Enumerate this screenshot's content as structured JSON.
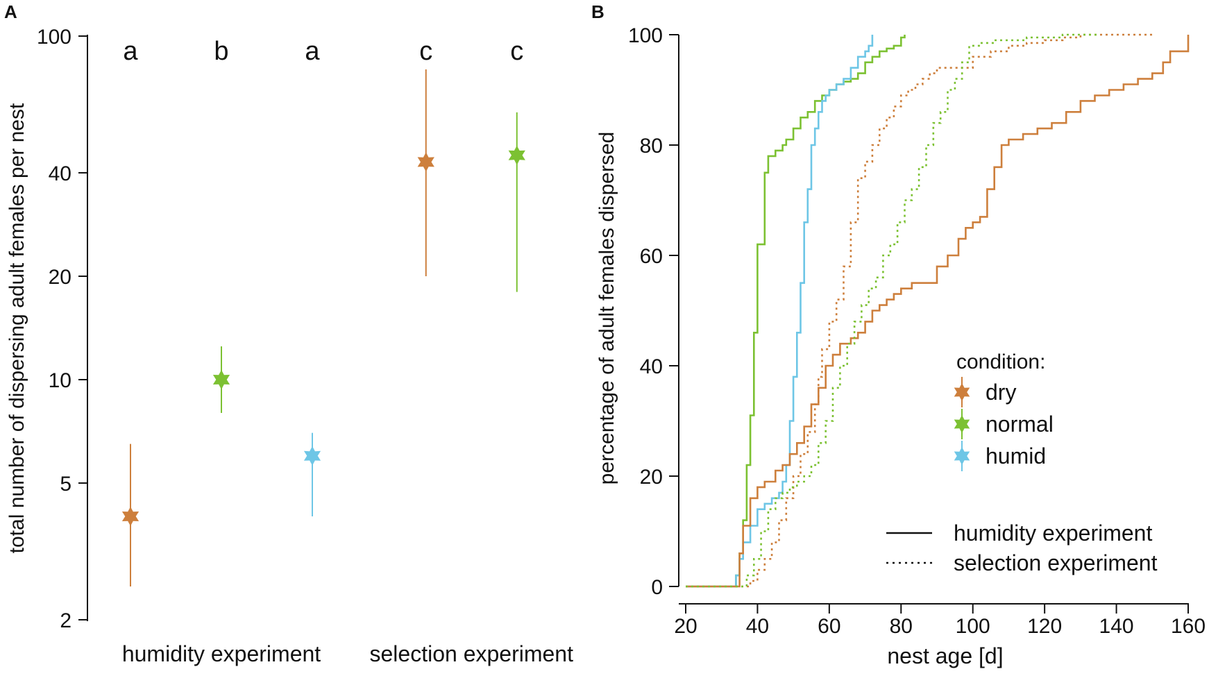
{
  "colors": {
    "dry": "#CD7F3C",
    "normal": "#7CC132",
    "humid": "#6EC6E6",
    "text": "#111111"
  },
  "chart_data": [
    {
      "panel": "A",
      "type": "scatter",
      "scale": "log",
      "ylabel": "total number of dispersing adult females per nest",
      "yticks": [
        2,
        5,
        10,
        20,
        40,
        100
      ],
      "ylim": [
        2,
        100
      ],
      "groups": [
        {
          "name": "humidity experiment",
          "positions": [
            1,
            2,
            3
          ]
        },
        {
          "name": "selection experiment",
          "positions": [
            4.25,
            5.25
          ]
        }
      ],
      "points": [
        {
          "position": 1,
          "condition": "dry",
          "value": 4.0,
          "lower": 2.5,
          "upper": 6.5,
          "letter": "a"
        },
        {
          "position": 2,
          "condition": "normal",
          "value": 10.0,
          "lower": 8.0,
          "upper": 12.5,
          "letter": "b"
        },
        {
          "position": 3,
          "condition": "humid",
          "value": 6.0,
          "lower": 4.0,
          "upper": 7.0,
          "letter": "a"
        },
        {
          "position": 4.25,
          "condition": "dry",
          "value": 43.0,
          "lower": 20.0,
          "upper": 80.0,
          "letter": "c"
        },
        {
          "position": 5.25,
          "condition": "normal",
          "value": 45.0,
          "lower": 18.0,
          "upper": 60.0,
          "letter": "c"
        }
      ]
    },
    {
      "panel": "B",
      "type": "line",
      "step": true,
      "xlabel": "nest age [d]",
      "ylabel": "percentage of adult females dispersed",
      "xlim": [
        20,
        160
      ],
      "ylim": [
        0,
        100
      ],
      "xticks": [
        20,
        40,
        60,
        80,
        100,
        120,
        140,
        160
      ],
      "yticks": [
        0,
        20,
        40,
        60,
        80,
        100
      ],
      "legend_condition_title": "condition:",
      "legend_condition": [
        {
          "name": "dry",
          "condition": "dry"
        },
        {
          "name": "normal",
          "condition": "normal"
        },
        {
          "name": "humid",
          "condition": "humid"
        }
      ],
      "legend_experiment": [
        {
          "name": "humidity experiment",
          "style": "solid"
        },
        {
          "name": "selection experiment",
          "style": "dotted"
        }
      ],
      "series": [
        {
          "name": "humidity normal",
          "condition": "normal",
          "style": "solid",
          "x": [
            20,
            34,
            35,
            36,
            37,
            38,
            39,
            40,
            42,
            43,
            45,
            47,
            48,
            50,
            52,
            54,
            56,
            58,
            60,
            62,
            64,
            66,
            68,
            70,
            72,
            74,
            76,
            78,
            80,
            81
          ],
          "y": [
            0,
            2,
            6,
            12,
            22,
            31,
            46,
            62,
            75,
            78,
            79,
            80,
            81,
            83,
            85,
            86,
            88,
            89,
            90,
            91,
            91.5,
            92,
            93,
            95,
            96,
            97,
            97.5,
            98,
            99.5,
            100
          ]
        },
        {
          "name": "humidity humid",
          "condition": "humid",
          "style": "solid",
          "x": [
            20,
            34,
            35,
            36,
            38,
            40,
            42,
            44,
            46,
            47,
            48,
            49,
            50,
            51,
            52,
            53,
            54,
            55,
            56,
            57,
            58,
            59,
            60,
            62,
            64,
            66,
            68,
            70,
            71,
            72
          ],
          "y": [
            0,
            2,
            5,
            8,
            11,
            14,
            15,
            16,
            17,
            19,
            22,
            30,
            38,
            46,
            55,
            66,
            72,
            80,
            83,
            86,
            88,
            89,
            90,
            91,
            92,
            94,
            96,
            97,
            98,
            100
          ]
        },
        {
          "name": "humidity dry",
          "condition": "dry",
          "style": "solid",
          "x": [
            20,
            35,
            36,
            38,
            40,
            42,
            45,
            47,
            49,
            51,
            53,
            55,
            57,
            59,
            61,
            63,
            66,
            68,
            70,
            72,
            74,
            76,
            78,
            80,
            83,
            86,
            88,
            90,
            93,
            96,
            98,
            100,
            102,
            104,
            106,
            108,
            110,
            114,
            118,
            122,
            126,
            130,
            134,
            138,
            142,
            146,
            150,
            153,
            155,
            160
          ],
          "y": [
            0,
            6,
            11,
            16,
            18,
            19,
            21,
            22,
            24,
            26,
            29,
            33,
            36,
            40,
            42,
            44,
            45,
            46,
            48,
            50,
            51,
            52,
            53,
            54,
            55,
            55,
            55,
            58,
            60,
            63,
            65,
            66,
            67,
            72,
            76,
            80,
            81,
            82,
            83,
            84,
            86,
            88,
            89,
            90,
            91,
            92,
            93,
            95,
            97,
            100
          ]
        },
        {
          "name": "selection dry",
          "condition": "dry",
          "style": "dotted",
          "x": [
            20,
            38,
            40,
            42,
            44,
            46,
            48,
            50,
            52,
            54,
            56,
            57,
            58,
            60,
            62,
            64,
            66,
            68,
            70,
            72,
            74,
            76,
            78,
            80,
            82,
            84,
            86,
            88,
            90,
            92,
            95,
            100,
            105,
            110,
            115,
            120,
            125,
            130,
            135,
            140,
            145,
            150
          ],
          "y": [
            0,
            1,
            3,
            5,
            8,
            12,
            16,
            20,
            24,
            28,
            33,
            38,
            43,
            48,
            52,
            58,
            66,
            74,
            77,
            80,
            83,
            85,
            87,
            89,
            90,
            91,
            92,
            93,
            94,
            94,
            94,
            96,
            97,
            98,
            98.5,
            99,
            99.5,
            100,
            100,
            100,
            100,
            100
          ]
        },
        {
          "name": "selection normal",
          "condition": "normal",
          "style": "dotted",
          "x": [
            20,
            37,
            39,
            41,
            43,
            45,
            47,
            49,
            51,
            53,
            55,
            57,
            59,
            61,
            63,
            65,
            67,
            69,
            71,
            73,
            75,
            77,
            79,
            81,
            83,
            85,
            87,
            89,
            91,
            93,
            95,
            97,
            99,
            102,
            106,
            110,
            115,
            120,
            125,
            130,
            135
          ],
          "y": [
            0,
            2,
            5,
            10,
            14,
            16,
            17,
            18,
            19,
            20,
            22,
            26,
            30,
            36,
            40,
            44,
            48,
            51,
            54,
            56,
            60,
            62,
            66,
            70,
            72,
            76,
            80,
            84,
            86,
            90,
            92,
            95,
            98,
            98.5,
            99,
            99,
            99.5,
            99.5,
            100,
            100,
            100
          ]
        }
      ]
    }
  ]
}
